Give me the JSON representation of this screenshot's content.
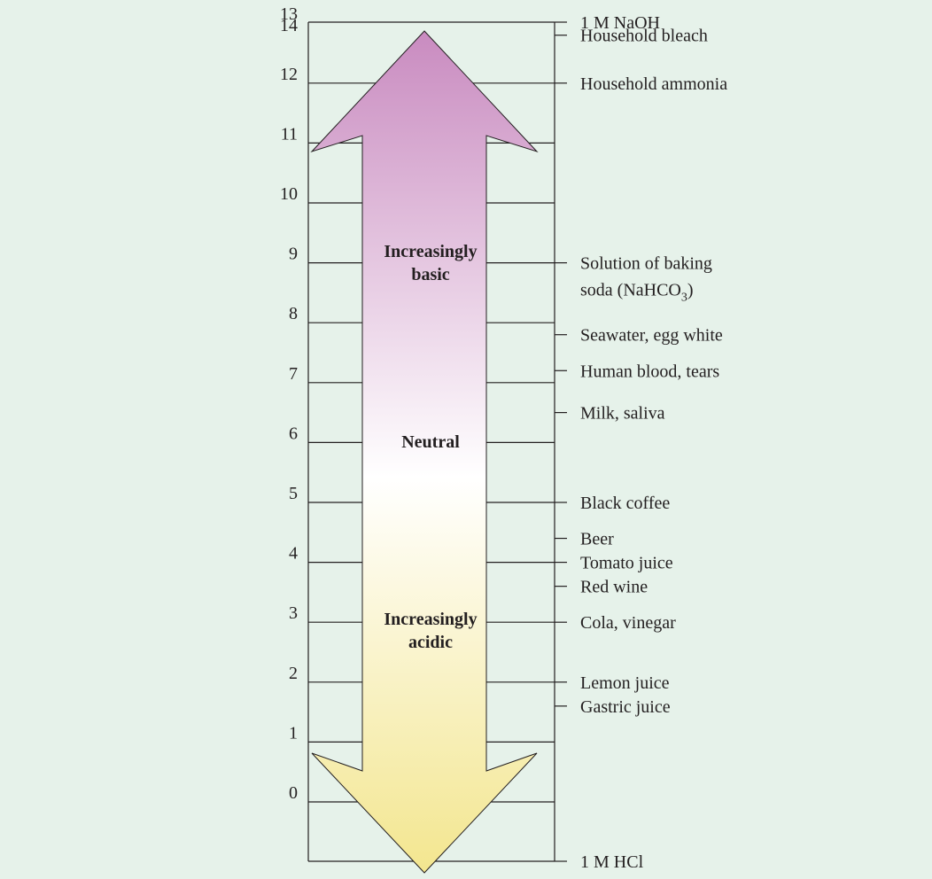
{
  "diagram": {
    "scale_numbers": [
      "0",
      "1",
      "2",
      "3",
      "4",
      "5",
      "6",
      "7",
      "8",
      "9",
      "10",
      "11",
      "12",
      "13",
      "14"
    ],
    "arrow_labels": {
      "basic_line1": "Increasingly",
      "basic_line2": "basic",
      "neutral": "Neutral",
      "acidic_line1": "Increasingly",
      "acidic_line2": "acidic"
    },
    "substances": [
      {
        "name": "1 M NaOH",
        "ph": 14.0
      },
      {
        "name": "Household bleach",
        "ph": 12.8
      },
      {
        "name": "Household ammonia",
        "ph": 12.0
      },
      {
        "name": "Solution of baking soda (NaHCO3)",
        "line1": "Solution of baking",
        "line2_pre": "soda (NaHCO",
        "line2_sub": "3",
        "line2_post": ")",
        "ph": 9.0
      },
      {
        "name": "Seawater, egg white",
        "ph": 7.8
      },
      {
        "name": "Human blood, tears",
        "ph": 7.2
      },
      {
        "name": "Milk, saliva",
        "ph": 6.5
      },
      {
        "name": "Black coffee",
        "ph": 5.0
      },
      {
        "name": "Beer",
        "ph": 4.4
      },
      {
        "name": "Tomato juice",
        "ph": 4.0
      },
      {
        "name": "Red wine",
        "ph": 3.6
      },
      {
        "name": "Cola, vinegar",
        "ph": 3.0
      },
      {
        "name": "Lemon juice",
        "ph": 2.0
      },
      {
        "name": "Gastric juice",
        "ph": 1.6
      },
      {
        "name": "1 M HCl",
        "ph": 0.0
      }
    ],
    "colors": {
      "background": "#e6f2ea",
      "basic": "#c98bc0",
      "neutral": "#ffffff",
      "acidic": "#f3e68f",
      "line": "#231f20"
    }
  }
}
